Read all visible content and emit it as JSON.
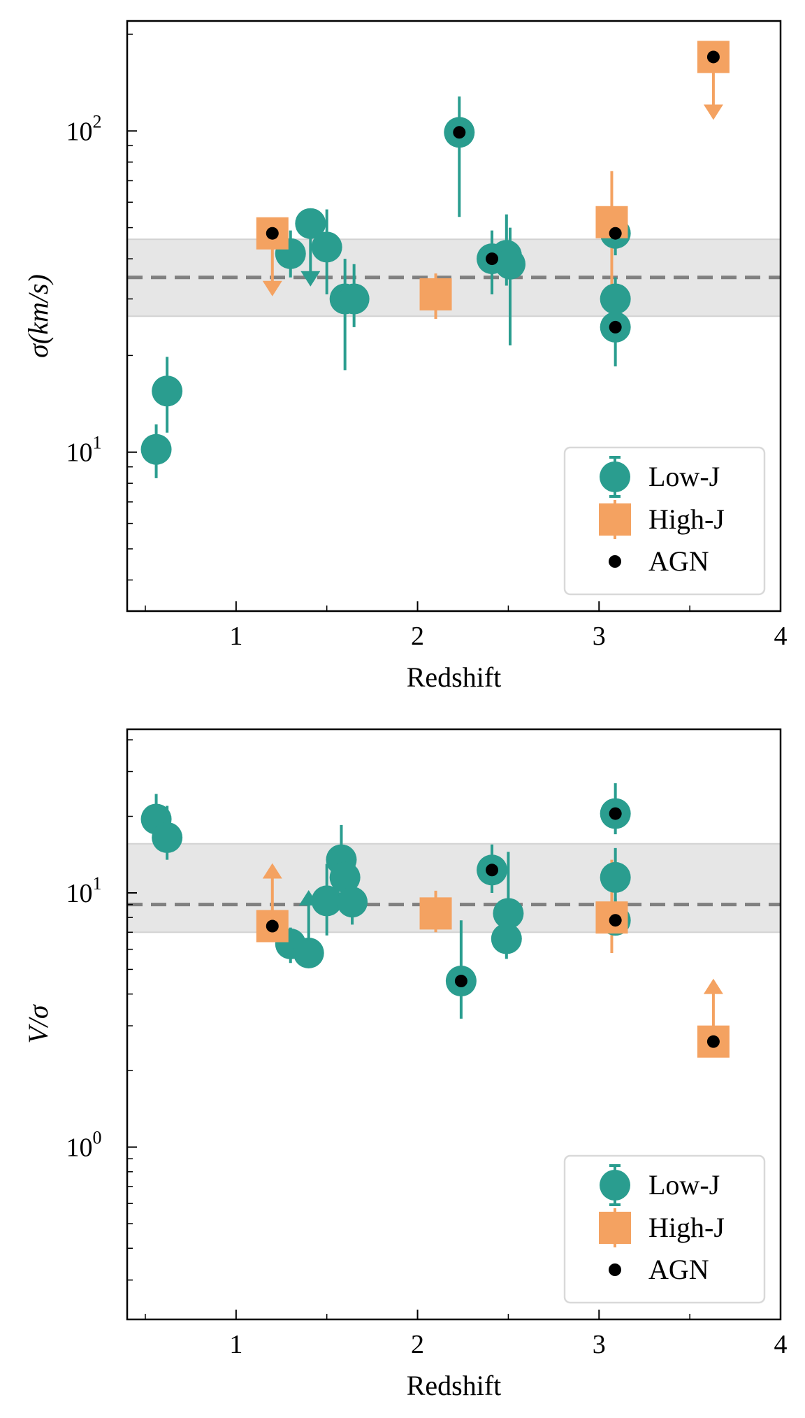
{
  "colors": {
    "low_j": "#2a9d8f",
    "high_j": "#f4a261",
    "agn": "#000000",
    "band": "#e6e6e6",
    "median": "#808080"
  },
  "chart_data": [
    {
      "type": "scatter",
      "xlabel": "Redshift",
      "ylabel": "σ(km/s)",
      "yscale": "log",
      "xlim": [
        0.4,
        4.0
      ],
      "ylim": [
        3.2,
        220
      ],
      "xticks": [
        1,
        2,
        3,
        4
      ],
      "xtick_labels": [
        "1",
        "2",
        "3",
        "4"
      ],
      "ytick_labels": [
        {
          "value": 10,
          "base": "10",
          "exp": "1"
        },
        {
          "value": 100,
          "base": "10",
          "exp": "2"
        }
      ],
      "median": 35,
      "band": [
        26.5,
        46
      ],
      "legend": {
        "position": "lower-right",
        "entries": [
          "Low-J",
          "High-J",
          "AGN"
        ]
      },
      "series": [
        {
          "name": "Low-J",
          "marker": "circle",
          "points": [
            {
              "x": 0.56,
              "y": 10.2,
              "yerr": [
                8.3,
                12.2
              ]
            },
            {
              "x": 0.62,
              "y": 15.5,
              "yerr": [
                11.5,
                19.8
              ]
            },
            {
              "x": 1.3,
              "y": 41.5,
              "yerr": [
                35.0,
                49.0
              ]
            },
            {
              "x": 1.41,
              "y": 51.5,
              "upper_limit": true
            },
            {
              "x": 1.5,
              "y": 43.5,
              "yerr": [
                31.0,
                57.0
              ]
            },
            {
              "x": 1.6,
              "y": 30.0,
              "yerr": [
                18.0,
                40.0
              ]
            },
            {
              "x": 1.65,
              "y": 30.0,
              "yerr": [
                24.5,
                38.5
              ]
            },
            {
              "x": 2.23,
              "y": 99.0,
              "yerr": [
                54.0,
                128.0
              ]
            },
            {
              "x": 2.41,
              "y": 40.0,
              "yerr": [
                31.0,
                49.0
              ]
            },
            {
              "x": 2.49,
              "y": 41.0,
              "yerr": [
                33.0,
                55.0
              ]
            },
            {
              "x": 2.51,
              "y": 38.5,
              "yerr": [
                21.5,
                50.0
              ]
            },
            {
              "x": 3.09,
              "y": 48.0,
              "yerr": [
                41.0,
                55.0
              ]
            },
            {
              "x": 3.09,
              "y": 30.0,
              "yerr": [
                25.5,
                35.0
              ]
            },
            {
              "x": 3.09,
              "y": 24.5,
              "yerr": [
                18.5,
                29.0
              ]
            }
          ]
        },
        {
          "name": "High-J",
          "marker": "square",
          "points": [
            {
              "x": 1.2,
              "y": 48.0,
              "upper_limit": true
            },
            {
              "x": 2.1,
              "y": 31.0,
              "yerr": [
                26.0,
                36.0
              ]
            },
            {
              "x": 3.07,
              "y": 52.0,
              "yerr": [
                33.0,
                75.0
              ]
            },
            {
              "x": 3.63,
              "y": 170.0,
              "upper_limit": true
            }
          ]
        },
        {
          "name": "AGN",
          "marker": "dot",
          "points": [
            {
              "x": 1.2,
              "y": 48.0
            },
            {
              "x": 2.23,
              "y": 99.0
            },
            {
              "x": 2.41,
              "y": 40.0
            },
            {
              "x": 3.09,
              "y": 48.0
            },
            {
              "x": 3.09,
              "y": 24.5
            },
            {
              "x": 3.63,
              "y": 170.0
            }
          ]
        }
      ]
    },
    {
      "type": "scatter",
      "xlabel": "Redshift",
      "ylabel": "V/σ",
      "yscale": "log",
      "xlim": [
        0.4,
        4.0
      ],
      "ylim": [
        0.21,
        44
      ],
      "xticks": [
        1,
        2,
        3,
        4
      ],
      "xtick_labels": [
        "1",
        "2",
        "3",
        "4"
      ],
      "ytick_labels": [
        {
          "value": 1,
          "base": "10",
          "exp": "0"
        },
        {
          "value": 10,
          "base": "10",
          "exp": "1"
        }
      ],
      "median": 9.0,
      "band": [
        7.0,
        15.6
      ],
      "legend": {
        "position": "lower-right",
        "entries": [
          "Low-J",
          "High-J",
          "AGN"
        ]
      },
      "series": [
        {
          "name": "Low-J",
          "marker": "circle",
          "points": [
            {
              "x": 0.56,
              "y": 19.5,
              "yerr": [
                16.0,
                24.5
              ]
            },
            {
              "x": 0.62,
              "y": 16.5,
              "yerr": [
                13.5,
                22.0
              ]
            },
            {
              "x": 1.3,
              "y": 6.3,
              "yerr": [
                5.3,
                7.3
              ]
            },
            {
              "x": 1.4,
              "y": 5.8,
              "lower_limit": true
            },
            {
              "x": 1.5,
              "y": 9.3,
              "yerr": [
                6.8,
                13.0
              ]
            },
            {
              "x": 1.58,
              "y": 13.5,
              "yerr": [
                10.5,
                18.5
              ]
            },
            {
              "x": 1.6,
              "y": 11.5,
              "yerr": [
                9.0,
                15.0
              ]
            },
            {
              "x": 1.64,
              "y": 9.2,
              "yerr": [
                7.5,
                11.0
              ]
            },
            {
              "x": 2.24,
              "y": 4.5,
              "yerr": [
                3.2,
                7.8
              ]
            },
            {
              "x": 2.41,
              "y": 12.3,
              "yerr": [
                10.0,
                15.5
              ]
            },
            {
              "x": 2.5,
              "y": 8.3,
              "yerr": [
                5.8,
                14.5
              ]
            },
            {
              "x": 2.49,
              "y": 6.6,
              "yerr": [
                5.5,
                8.0
              ]
            },
            {
              "x": 3.09,
              "y": 20.5,
              "yerr": [
                17.0,
                27.0
              ]
            },
            {
              "x": 3.09,
              "y": 11.5,
              "yerr": [
                9.0,
                15.0
              ]
            },
            {
              "x": 3.09,
              "y": 7.8,
              "yerr": [
                6.8,
                9.5
              ]
            }
          ]
        },
        {
          "name": "High-J",
          "marker": "square",
          "points": [
            {
              "x": 1.2,
              "y": 7.4,
              "lower_limit": true
            },
            {
              "x": 2.1,
              "y": 8.3,
              "yerr": [
                7.0,
                10.2
              ]
            },
            {
              "x": 3.07,
              "y": 8.0,
              "yerr": [
                5.8,
                13.5
              ]
            },
            {
              "x": 3.63,
              "y": 2.6,
              "lower_limit": true
            }
          ]
        },
        {
          "name": "AGN",
          "marker": "dot",
          "points": [
            {
              "x": 1.2,
              "y": 7.4
            },
            {
              "x": 2.24,
              "y": 4.5
            },
            {
              "x": 2.41,
              "y": 12.3
            },
            {
              "x": 3.09,
              "y": 20.5
            },
            {
              "x": 3.09,
              "y": 7.8
            },
            {
              "x": 3.63,
              "y": 2.6
            }
          ]
        }
      ]
    }
  ]
}
